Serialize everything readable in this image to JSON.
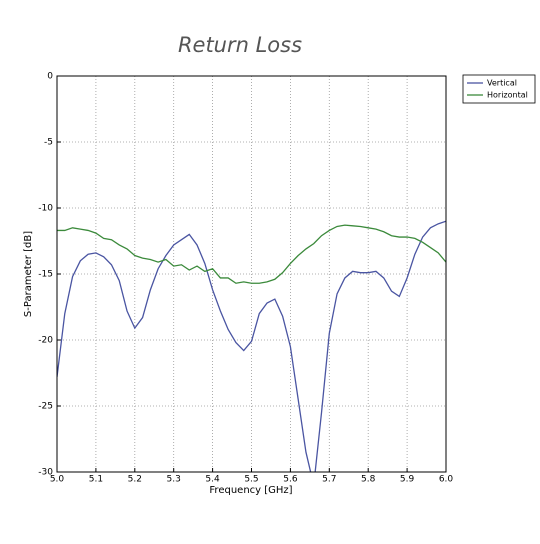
{
  "chart_data": {
    "type": "line",
    "title": "Return Loss",
    "x_label": "Frequency [GHz]",
    "y_label": "S-Parameter [dB]",
    "x": [
      5.0,
      5.02,
      5.04,
      5.06,
      5.08,
      5.1,
      5.12,
      5.14,
      5.16,
      5.18,
      5.2,
      5.22,
      5.24,
      5.26,
      5.28,
      5.3,
      5.32,
      5.34,
      5.36,
      5.38,
      5.4,
      5.42,
      5.44,
      5.46,
      5.48,
      5.5,
      5.52,
      5.54,
      5.56,
      5.58,
      5.6,
      5.62,
      5.64,
      5.66,
      5.68,
      5.7,
      5.72,
      5.74,
      5.76,
      5.78,
      5.8,
      5.82,
      5.84,
      5.86,
      5.88,
      5.9,
      5.92,
      5.94,
      5.96,
      5.98,
      6.0
    ],
    "series": [
      {
        "name": "Vertical",
        "color": "#4a55a2",
        "values": [
          -22.8,
          -18,
          -15.2,
          -14,
          -13.5,
          -13.4,
          -13.7,
          -14.3,
          -15.5,
          -17.8,
          -19.1,
          -18.3,
          -16.2,
          -14.6,
          -13.6,
          -12.8,
          -12.4,
          -12.0,
          -12.8,
          -14.2,
          -16.2,
          -17.8,
          -19.2,
          -20.2,
          -20.8,
          -20.1,
          -18,
          -17.2,
          -16.9,
          -18.2,
          -20.5,
          -24.5,
          -28.5,
          -31,
          -25.5,
          -19.5,
          -16.5,
          -15.3,
          -14.8,
          -14.9,
          -14.9,
          -14.8,
          -15.3,
          -16.3,
          -16.7,
          -15.3,
          -13.5,
          -12.2,
          -11.5,
          -11.2,
          -11.0
        ]
      },
      {
        "name": "Horizontal",
        "color": "#3b8a3b",
        "values": [
          -11.7,
          -11.7,
          -11.5,
          -11.6,
          -11.7,
          -11.9,
          -12.3,
          -12.4,
          -12.8,
          -13.1,
          -13.6,
          -13.8,
          -13.9,
          -14.1,
          -13.9,
          -14.4,
          -14.3,
          -14.7,
          -14.4,
          -14.8,
          -14.6,
          -15.3,
          -15.3,
          -15.7,
          -15.6,
          -15.7,
          -15.7,
          -15.6,
          -15.4,
          -14.9,
          -14.2,
          -13.6,
          -13.1,
          -12.7,
          -12.1,
          -11.7,
          -11.4,
          -11.3,
          -11.35,
          -11.4,
          -11.5,
          -11.6,
          -11.8,
          -12.1,
          -12.2,
          -12.2,
          -12.3,
          -12.6,
          -13.0,
          -13.4,
          -14.1
        ]
      }
    ],
    "xlim": [
      5,
      6
    ],
    "ylim": [
      -30,
      0
    ],
    "xticks": [
      {
        "value": 5,
        "label": "5.0"
      },
      5.1,
      5.2,
      5.3,
      5.4,
      5.5,
      5.6,
      5.7,
      5.8,
      5.9,
      {
        "value": 6,
        "label": "6.0"
      }
    ],
    "yticks": [
      0,
      -5,
      -10,
      -15,
      -20,
      -25,
      -30
    ],
    "grid": true,
    "legend": "outside-right"
  }
}
